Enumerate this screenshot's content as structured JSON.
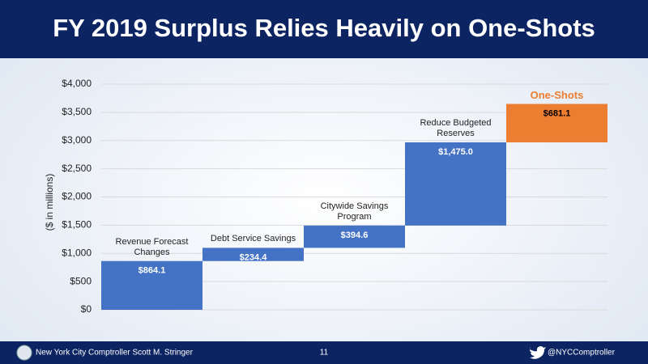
{
  "chart_data": {
    "type": "waterfall",
    "title": "FY 2019 Surplus Relies Heavily on One-Shots",
    "y_label": "($ in millions)",
    "categories": [
      "Revenue Forecast Changes",
      "Debt Service Savings",
      "Citywide Savings Program",
      "Reduce Budgeted Reserves",
      "One-Shots"
    ],
    "values": [
      864.1,
      234.4,
      394.6,
      1475.0,
      681.1
    ],
    "value_labels": [
      "$864.1",
      "$234.4",
      "$394.6",
      "$1,475.0",
      "$681.1"
    ],
    "colors": [
      "#4472c4",
      "#4472c4",
      "#4472c4",
      "#4472c4",
      "#ed7d31"
    ],
    "value_label_colors": [
      "#ffffff",
      "#ffffff",
      "#ffffff",
      "#ffffff",
      "#000000"
    ],
    "category_label_colors": [
      "#222222",
      "#222222",
      "#222222",
      "#222222",
      "#ed7d31"
    ],
    "ylim": [
      0,
      4000
    ],
    "yticks": [
      {
        "value": 0,
        "label": "$0"
      },
      {
        "value": 500,
        "label": "$500"
      },
      {
        "value": 1000,
        "label": "$1,000"
      },
      {
        "value": 1500,
        "label": "$1,500"
      },
      {
        "value": 2000,
        "label": "$2,000"
      },
      {
        "value": 2500,
        "label": "$2,500"
      },
      {
        "value": 3000,
        "label": "$3,000"
      },
      {
        "value": 3500,
        "label": "$3,500"
      },
      {
        "value": 4000,
        "label": "$4,000"
      }
    ],
    "grid": true
  },
  "footer": {
    "left": "New York City Comptroller Scott M. Stringer",
    "page": "11",
    "right": "@NYCComptroller"
  }
}
